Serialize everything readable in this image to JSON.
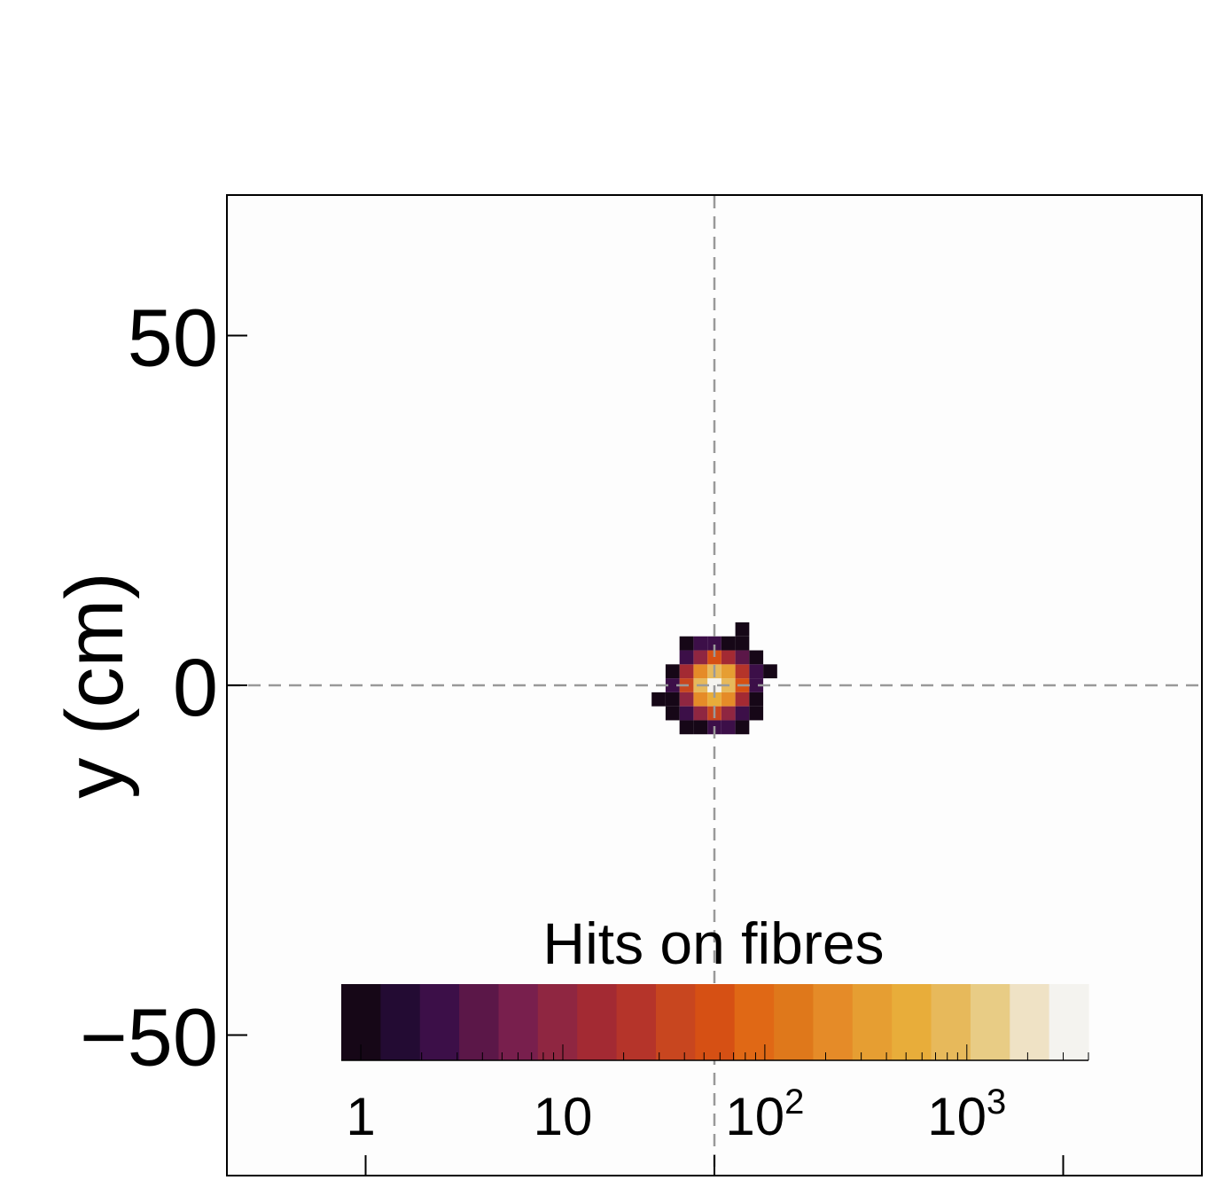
{
  "chart_data": {
    "type": "heatmap",
    "title": "",
    "xlabel": "",
    "ylabel": "y (cm)",
    "xlim": [
      -70,
      70
    ],
    "ylim": [
      -70,
      70
    ],
    "x_ticks": [
      -50,
      0,
      50
    ],
    "y_ticks": [
      -50,
      0,
      50
    ],
    "y_tick_labels": [
      "50",
      "0",
      "−50"
    ],
    "bin_size_cm": 2,
    "reference_lines": {
      "x": 0,
      "y": 0,
      "style": "dashed",
      "color": "#999999"
    },
    "grid": false,
    "colorbar": {
      "title": "Hits on fibres",
      "scale": "log",
      "range": [
        0.8,
        4000
      ],
      "tick_labels": [
        {
          "value": 1,
          "base": "1",
          "exp": ""
        },
        {
          "value": 10,
          "base": "10",
          "exp": ""
        },
        {
          "value": 100,
          "base": "10",
          "exp": "2"
        },
        {
          "value": 1000,
          "base": "10",
          "exp": "3"
        }
      ],
      "colors": [
        "#160717",
        "#230b33",
        "#3c0f48",
        "#5b1748",
        "#781f4d",
        "#8f2641",
        "#a32a33",
        "#b5342a",
        "#c8461f",
        "#d65014",
        "#e06815",
        "#df781b",
        "#e58b28",
        "#e69e32",
        "#e8ad3a",
        "#e7b95b",
        "#e8cc85",
        "#efe2c5",
        "#f4f3ef"
      ]
    },
    "cells": [
      {
        "x": 0,
        "y": 0,
        "v": 3000
      },
      {
        "x": 2,
        "y": 0,
        "v": 900
      },
      {
        "x": -2,
        "y": 0,
        "v": 700
      },
      {
        "x": 0,
        "y": 2,
        "v": 800
      },
      {
        "x": 0,
        "y": -2,
        "v": 600
      },
      {
        "x": 2,
        "y": 2,
        "v": 300
      },
      {
        "x": -2,
        "y": 2,
        "v": 250
      },
      {
        "x": 2,
        "y": -2,
        "v": 200
      },
      {
        "x": -2,
        "y": -2,
        "v": 180
      },
      {
        "x": 4,
        "y": 0,
        "v": 60
      },
      {
        "x": -4,
        "y": 0,
        "v": 40
      },
      {
        "x": 0,
        "y": 4,
        "v": 50
      },
      {
        "x": 0,
        "y": -4,
        "v": 45
      },
      {
        "x": 4,
        "y": 2,
        "v": 20
      },
      {
        "x": -4,
        "y": 2,
        "v": 15
      },
      {
        "x": 2,
        "y": 4,
        "v": 12
      },
      {
        "x": -2,
        "y": 4,
        "v": 10
      },
      {
        "x": 4,
        "y": -2,
        "v": 14
      },
      {
        "x": -4,
        "y": -2,
        "v": 11
      },
      {
        "x": 2,
        "y": -4,
        "v": 9
      },
      {
        "x": -2,
        "y": -4,
        "v": 8
      },
      {
        "x": 4,
        "y": 4,
        "v": 4
      },
      {
        "x": -4,
        "y": 4,
        "v": 3
      },
      {
        "x": 4,
        "y": -4,
        "v": 3
      },
      {
        "x": -4,
        "y": -4,
        "v": 2
      },
      {
        "x": 6,
        "y": 0,
        "v": 3
      },
      {
        "x": -6,
        "y": 0,
        "v": 2
      },
      {
        "x": 0,
        "y": 6,
        "v": 3
      },
      {
        "x": 0,
        "y": -6,
        "v": 2
      },
      {
        "x": 6,
        "y": 2,
        "v": 2
      },
      {
        "x": 8,
        "y": 2,
        "v": 1
      },
      {
        "x": -6,
        "y": 2,
        "v": 1
      },
      {
        "x": 6,
        "y": -2,
        "v": 1
      },
      {
        "x": -8,
        "y": -2,
        "v": 1
      },
      {
        "x": -6,
        "y": -2,
        "v": 1
      },
      {
        "x": 2,
        "y": 6,
        "v": 1
      },
      {
        "x": -2,
        "y": 6,
        "v": 2
      },
      {
        "x": 4,
        "y": 6,
        "v": 1
      },
      {
        "x": 6,
        "y": 4,
        "v": 1
      },
      {
        "x": 4,
        "y": 8,
        "v": 1
      },
      {
        "x": -4,
        "y": 6,
        "v": 1
      },
      {
        "x": 2,
        "y": -6,
        "v": 2
      },
      {
        "x": -2,
        "y": -6,
        "v": 1
      },
      {
        "x": -4,
        "y": -6,
        "v": 1
      },
      {
        "x": 4,
        "y": -6,
        "v": 1
      },
      {
        "x": -6,
        "y": -4,
        "v": 1
      },
      {
        "x": 6,
        "y": -4,
        "v": 1
      }
    ]
  }
}
